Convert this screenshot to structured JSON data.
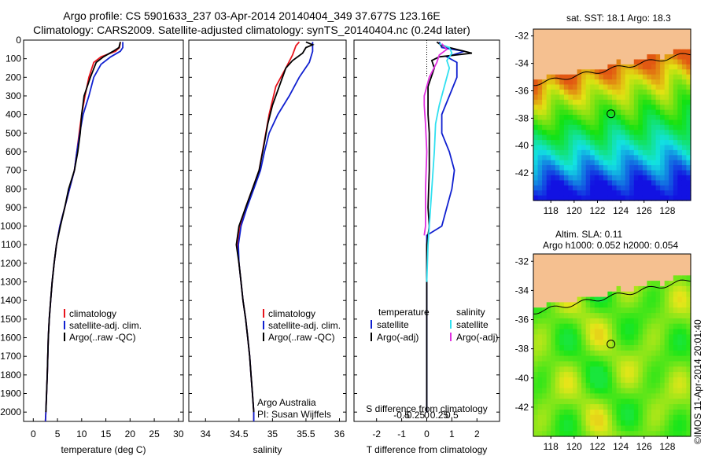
{
  "header": {
    "line1": "Argo profile: CS 5901633_237 03-Apr-2014 20140404_349 37.677S 123.16E",
    "line2": "Climatology: CARS2009. Satellite-adjusted climatology: synTS_20140404.nc (0.24d later)"
  },
  "colors": {
    "clim": "#e8141c",
    "sat": "#1020d0",
    "argo": "#000000",
    "sal_sat": "#30e0f0",
    "sal_argo": "#e030e0",
    "land": "#f5c090"
  },
  "chart_data": [
    {
      "type": "line",
      "id": "temperature",
      "xlabel": "temperature (deg C)",
      "ylabel": "",
      "xlim": [
        -2,
        31
      ],
      "ylim": [
        2050,
        0
      ],
      "xticks": [
        "0",
        "5",
        "10",
        "15",
        "20",
        "25",
        "30"
      ],
      "yticks": [
        "0",
        "100",
        "200",
        "300",
        "400",
        "500",
        "600",
        "700",
        "800",
        "900",
        "1000",
        "1100",
        "1200",
        "1300",
        "1400",
        "1500",
        "1600",
        "1700",
        "1800",
        "1900",
        "2000"
      ],
      "legend": [
        "climatology",
        "satellite-adj. clim.",
        "Argo(..raw -QC)"
      ],
      "series": [
        {
          "name": "climatology",
          "color": "#e8141c",
          "points": [
            [
              18,
              10
            ],
            [
              17.8,
              40
            ],
            [
              17,
              60
            ],
            [
              14,
              90
            ],
            [
              12.5,
              120
            ],
            [
              11.5,
              200
            ],
            [
              10.7,
              300
            ],
            [
              10,
              400
            ],
            [
              9.5,
              500
            ],
            [
              9,
              600
            ],
            [
              8.5,
              700
            ],
            [
              7.5,
              800
            ],
            [
              6.5,
              900
            ],
            [
              5.5,
              1000
            ],
            [
              4.8,
              1100
            ],
            [
              4.3,
              1200
            ],
            [
              3.9,
              1300
            ],
            [
              3.6,
              1400
            ],
            [
              3.3,
              1500
            ],
            [
              3.1,
              1600
            ],
            [
              2.9,
              1800
            ],
            [
              2.6,
              2000
            ],
            [
              2.5,
              2050
            ]
          ]
        },
        {
          "name": "satellite-adj. clim.",
          "color": "#1020d0",
          "points": [
            [
              18.5,
              10
            ],
            [
              18.5,
              40
            ],
            [
              18,
              60
            ],
            [
              16,
              90
            ],
            [
              14,
              130
            ],
            [
              12.5,
              200
            ],
            [
              11.5,
              300
            ],
            [
              10.3,
              400
            ],
            [
              9.6,
              500
            ],
            [
              9,
              600
            ],
            [
              8.5,
              700
            ],
            [
              7.5,
              800
            ],
            [
              6.5,
              900
            ],
            [
              5.5,
              1000
            ],
            [
              4.8,
              1100
            ],
            [
              4.3,
              1200
            ],
            [
              3.9,
              1300
            ],
            [
              3.6,
              1400
            ],
            [
              3.3,
              1500
            ],
            [
              3.1,
              1600
            ],
            [
              2.9,
              1800
            ],
            [
              2.6,
              2000
            ],
            [
              2.5,
              2050
            ]
          ]
        },
        {
          "name": "Argo(..raw -QC)",
          "color": "#000000",
          "points": [
            [
              18,
              10
            ],
            [
              17.7,
              40
            ],
            [
              16.5,
              60
            ],
            [
              14.5,
              90
            ],
            [
              13,
              120
            ],
            [
              11.8,
              200
            ],
            [
              10.5,
              300
            ],
            [
              10,
              400
            ],
            [
              9.7,
              500
            ],
            [
              9.2,
              600
            ],
            [
              8.5,
              700
            ],
            [
              7.3,
              800
            ],
            [
              6.5,
              900
            ],
            [
              5.6,
              1000
            ],
            [
              4.8,
              1100
            ],
            [
              4.3,
              1200
            ],
            [
              3.9,
              1300
            ],
            [
              3.6,
              1400
            ],
            [
              3.3,
              1500
            ],
            [
              3.1,
              1600
            ],
            [
              2.9,
              1800
            ],
            [
              2.6,
              2000
            ]
          ]
        }
      ]
    },
    {
      "type": "line",
      "id": "salinity",
      "xlabel": "salinity",
      "ylabel": "",
      "xlim": [
        33.75,
        36.1
      ],
      "ylim": [
        2050,
        0
      ],
      "xticks": [
        "34",
        "34.5",
        "35",
        "35.5",
        "36"
      ],
      "legend": [
        "climatology",
        "satellite-adj. clim.",
        "Argo(..raw -QC)"
      ],
      "annotation": [
        "Argo Australia",
        "PI: Susan Wijffels"
      ],
      "series": [
        {
          "name": "climatology",
          "color": "#e8141c",
          "points": [
            [
              35.4,
              10
            ],
            [
              35.35,
              30
            ],
            [
              35.3,
              80
            ],
            [
              35.2,
              150
            ],
            [
              35.05,
              250
            ],
            [
              34.95,
              400
            ],
            [
              34.9,
              500
            ],
            [
              34.85,
              600
            ],
            [
              34.8,
              700
            ],
            [
              34.7,
              800
            ],
            [
              34.6,
              900
            ],
            [
              34.52,
              1000
            ],
            [
              34.48,
              1100
            ],
            [
              34.5,
              1200
            ],
            [
              34.53,
              1300
            ],
            [
              34.56,
              1400
            ],
            [
              34.6,
              1500
            ],
            [
              34.63,
              1600
            ],
            [
              34.66,
              1700
            ],
            [
              34.68,
              1800
            ],
            [
              34.7,
              1900
            ],
            [
              34.72,
              2000
            ],
            [
              34.72,
              2050
            ]
          ]
        },
        {
          "name": "satellite-adj. clim.",
          "color": "#1020d0",
          "points": [
            [
              35.6,
              10
            ],
            [
              35.6,
              30
            ],
            [
              35.6,
              60
            ],
            [
              35.55,
              120
            ],
            [
              35.4,
              200
            ],
            [
              35.25,
              300
            ],
            [
              35.08,
              400
            ],
            [
              34.95,
              500
            ],
            [
              34.88,
              600
            ],
            [
              34.82,
              700
            ],
            [
              34.72,
              800
            ],
            [
              34.62,
              900
            ],
            [
              34.53,
              1000
            ],
            [
              34.49,
              1100
            ],
            [
              34.5,
              1200
            ],
            [
              34.53,
              1300
            ],
            [
              34.56,
              1400
            ],
            [
              34.6,
              1500
            ],
            [
              34.63,
              1600
            ],
            [
              34.66,
              1700
            ],
            [
              34.68,
              1800
            ],
            [
              34.7,
              1900
            ],
            [
              34.72,
              2000
            ],
            [
              34.72,
              2050
            ]
          ]
        },
        {
          "name": "Argo(..raw -QC)",
          "color": "#000000",
          "points": [
            [
              35.5,
              10
            ],
            [
              35.6,
              25
            ],
            [
              35.5,
              40
            ],
            [
              35.45,
              70
            ],
            [
              35.3,
              110
            ],
            [
              35.2,
              150
            ],
            [
              35.1,
              250
            ],
            [
              35,
              350
            ],
            [
              34.93,
              450
            ],
            [
              34.88,
              550
            ],
            [
              34.8,
              700
            ],
            [
              34.7,
              800
            ],
            [
              34.6,
              900
            ],
            [
              34.5,
              1000
            ],
            [
              34.46,
              1100
            ],
            [
              34.5,
              1200
            ],
            [
              34.53,
              1300
            ],
            [
              34.56,
              1400
            ],
            [
              34.6,
              1500
            ],
            [
              34.63,
              1600
            ],
            [
              34.66,
              1700
            ],
            [
              34.68,
              1800
            ],
            [
              34.7,
              1900
            ],
            [
              34.72,
              2000
            ]
          ]
        }
      ]
    },
    {
      "type": "line",
      "id": "differences",
      "xlabel": "T difference from climatology",
      "xlabel_top": "S difference from climatology",
      "ylim": [
        2050,
        0
      ],
      "xlim": [
        -2.9,
        2.9
      ],
      "xticks_t": [
        "-2",
        "-1",
        "0",
        "1",
        "2"
      ],
      "xticks_s": [
        "-0.5",
        "-0.25",
        "0",
        "0.25",
        "0.5"
      ],
      "legend_t_title": "temperature",
      "legend_s_title": "salinity",
      "legend": [
        "satellite",
        "Argo(-adj)",
        "satellite",
        "Argo(-adj)"
      ],
      "series": [
        {
          "name": "satellite",
          "color": "#1020d0",
          "points": [
            [
              0.5,
              10
            ],
            [
              0.6,
              40
            ],
            [
              1.5,
              60
            ],
            [
              0.8,
              90
            ],
            [
              1.2,
              120
            ],
            [
              1.2,
              200
            ],
            [
              0.9,
              300
            ],
            [
              0.6,
              400
            ],
            [
              0.6,
              500
            ],
            [
              0.9,
              600
            ],
            [
              1.1,
              700
            ],
            [
              1.0,
              800
            ],
            [
              0.8,
              900
            ],
            [
              0.6,
              1000
            ],
            [
              0,
              1050
            ],
            [
              0,
              2000
            ]
          ]
        },
        {
          "name": "Argo(-adj)",
          "color": "#000000",
          "points": [
            [
              0.4,
              10
            ],
            [
              0.6,
              30
            ],
            [
              1.8,
              70
            ],
            [
              0.5,
              90
            ],
            [
              0.2,
              110
            ],
            [
              0.3,
              150
            ],
            [
              0.05,
              250
            ],
            [
              0.05,
              400
            ],
            [
              0.1,
              500
            ],
            [
              0.1,
              700
            ],
            [
              0.05,
              900
            ],
            [
              0.1,
              1000
            ],
            [
              0,
              1100
            ],
            [
              0,
              2000
            ]
          ]
        },
        {
          "name": "satellite",
          "color": "#30e0f0",
          "points": [
            [
              0.5,
              20
            ],
            [
              0.9,
              40
            ],
            [
              1.0,
              70
            ],
            [
              0.8,
              110
            ],
            [
              0.9,
              150
            ],
            [
              0.7,
              250
            ],
            [
              0.5,
              350
            ],
            [
              0.35,
              450
            ],
            [
              0.3,
              600
            ],
            [
              0.2,
              800
            ],
            [
              0.1,
              1000
            ],
            [
              0.05,
              1100
            ],
            [
              0,
              1300
            ]
          ]
        },
        {
          "name": "Argo(-adj)",
          "color": "#e030e0",
          "points": [
            [
              0.6,
              20
            ],
            [
              0.8,
              50
            ],
            [
              0.5,
              80
            ],
            [
              0.4,
              120
            ],
            [
              0.1,
              200
            ],
            [
              -0.1,
              300
            ],
            [
              -0.1,
              350
            ],
            [
              -0.05,
              450
            ],
            [
              0,
              600
            ],
            [
              -0.05,
              800
            ],
            [
              -0.05,
              1000
            ],
            [
              -0.1,
              1050
            ]
          ]
        }
      ]
    }
  ],
  "maps": {
    "sst_title": "sat. SST: 18.1  Argo: 18.3",
    "sla_title1": "Altim. SLA: 0.11",
    "sla_title2": "Argo h1000: 0.052  h2000: 0.054",
    "lat_ticks": [
      "-32",
      "-34",
      "-36",
      "-38",
      "-40",
      "-42"
    ],
    "lon_ticks": [
      "118",
      "120",
      "122",
      "124",
      "126",
      "128"
    ],
    "float_lon": 123.16,
    "float_lat": -37.677
  },
  "stamp": "©IMOS 11-Apr-2014 20:01:40"
}
